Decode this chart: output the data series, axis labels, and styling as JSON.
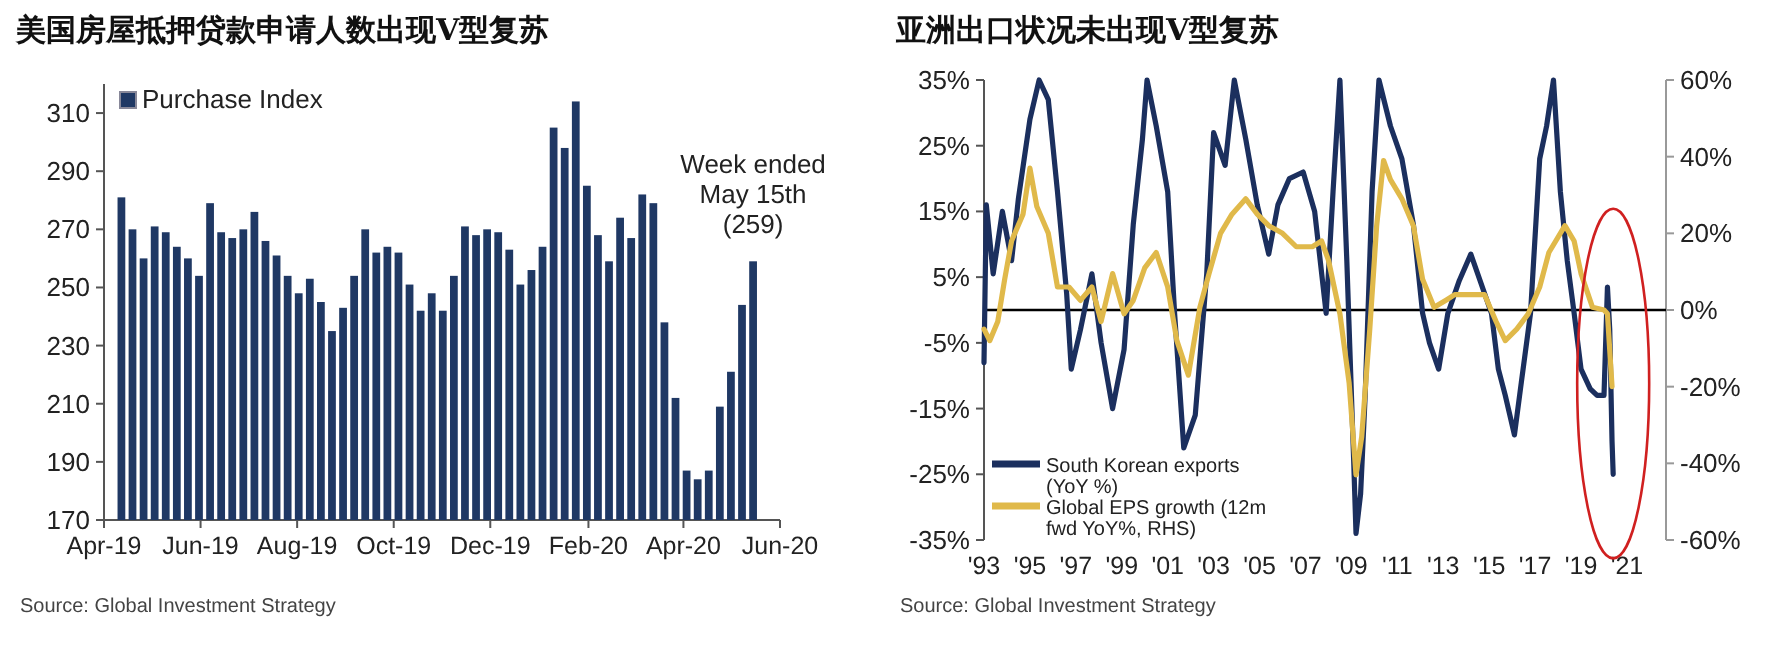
{
  "chart_data": [
    {
      "type": "bar",
      "title": "美国房屋抵押贷款申请人数出现V型复苏",
      "legend": "top left",
      "x": [
        "2019-04-12",
        "2019-04-19",
        "2019-04-26",
        "2019-05-03",
        "2019-05-10",
        "2019-05-17",
        "2019-05-24",
        "2019-05-31",
        "2019-06-07",
        "2019-06-14",
        "2019-06-21",
        "2019-06-28",
        "2019-07-05",
        "2019-07-12",
        "2019-07-19",
        "2019-07-26",
        "2019-08-02",
        "2019-08-09",
        "2019-08-16",
        "2019-08-23",
        "2019-08-30",
        "2019-09-06",
        "2019-09-13",
        "2019-09-20",
        "2019-09-27",
        "2019-10-04",
        "2019-10-11",
        "2019-10-18",
        "2019-10-25",
        "2019-11-01",
        "2019-11-08",
        "2019-11-15",
        "2019-11-22",
        "2019-11-29",
        "2019-12-06",
        "2019-12-13",
        "2019-12-20",
        "2019-12-27",
        "2020-01-03",
        "2020-01-10",
        "2020-01-17",
        "2020-01-24",
        "2020-01-31",
        "2020-02-07",
        "2020-02-14",
        "2020-02-21",
        "2020-02-28",
        "2020-03-06",
        "2020-03-13",
        "2020-03-20",
        "2020-03-27",
        "2020-04-03",
        "2020-04-10",
        "2020-04-17",
        "2020-04-24",
        "2020-05-01",
        "2020-05-08",
        "2020-05-15"
      ],
      "series": [
        {
          "name": "Purchase Index",
          "color": "#1f3864",
          "values": [
            281,
            270,
            260,
            271,
            269,
            264,
            260,
            254,
            279,
            269,
            267,
            270,
            276,
            266,
            261,
            254,
            248,
            253,
            245,
            235,
            243,
            254,
            270,
            262,
            264,
            262,
            251,
            242,
            248,
            242,
            254,
            271,
            268,
            270,
            269,
            263,
            251,
            256,
            264,
            305,
            298,
            314,
            285,
            268,
            259,
            274,
            267,
            282,
            279,
            238,
            212,
            187,
            184,
            187,
            209,
            221,
            244,
            259
          ]
        }
      ],
      "xlim": [
        "2019-04-01",
        "2020-06-01"
      ],
      "xticks": [
        {
          "value": "2019-04-01",
          "label": "Apr-19"
        },
        {
          "value": "2019-06-01",
          "label": "Jun-19"
        },
        {
          "value": "2019-08-01",
          "label": "Aug-19"
        },
        {
          "value": "2019-10-01",
          "label": "Oct-19"
        },
        {
          "value": "2019-12-01",
          "label": "Dec-19"
        },
        {
          "value": "2020-02-01",
          "label": "Feb-20"
        },
        {
          "value": "2020-04-01",
          "label": "Apr-20"
        },
        {
          "value": "2020-06-01",
          "label": "Jun-20"
        }
      ],
      "ylim": [
        170,
        320
      ],
      "yticks": [
        170,
        190,
        210,
        230,
        250,
        270,
        290,
        310
      ],
      "annotations": [
        {
          "text": "Week ended\nMay 15th\n(259)",
          "x": "2020-05-15",
          "y": 259
        },
        "Source: Global Investment Strategy"
      ]
    },
    {
      "type": "line",
      "title": "亚洲出口状况未出现V型复苏",
      "legend": "bottom left",
      "line_style": "solid",
      "series": [
        {
          "name": "South Korean exports (YoY %)",
          "color": "#1b2f5e",
          "x": [
            1993.0,
            1993.1,
            1993.4,
            1993.8,
            1994.2,
            1994.5,
            1995.0,
            1995.4,
            1995.8,
            1996.2,
            1996.6,
            1996.8,
            1997.2,
            1997.7,
            1998.1,
            1998.6,
            1999.1,
            1999.5,
            1999.9,
            2000.1,
            2000.5,
            2001.0,
            2001.3,
            2001.7,
            2002.2,
            2002.7,
            2003.0,
            2003.5,
            2003.9,
            2004.4,
            2004.9,
            2005.4,
            2005.8,
            2006.3,
            2006.9,
            2007.4,
            2007.9,
            2008.2,
            2008.5,
            2008.8,
            2009.1,
            2009.2,
            2009.4,
            2009.6,
            2009.9,
            2010.2,
            2010.7,
            2011.2,
            2011.7,
            2012.1,
            2012.4,
            2012.8,
            2013.2,
            2013.7,
            2014.2,
            2014.6,
            2015.1,
            2015.4,
            2015.7,
            2016.1,
            2016.4,
            2016.8,
            2017.2,
            2017.5,
            2017.8,
            2018.1,
            2018.4,
            2018.7,
            2019.0,
            2019.4,
            2019.7,
            2020.0,
            2020.15,
            2020.25,
            2020.35,
            2020.4
          ],
          "values": [
            -8,
            16,
            5.5,
            15,
            7.5,
            17,
            29,
            35,
            32,
            18,
            2.5,
            -9,
            -3,
            5.5,
            -5,
            -15,
            -6,
            13,
            26,
            35,
            28,
            18,
            -0.5,
            -21,
            -16,
            5.5,
            27,
            22,
            35,
            26,
            16,
            8.5,
            16,
            20,
            21,
            15,
            -0.5,
            18,
            35,
            7.5,
            -23,
            -34,
            -28,
            -13,
            18,
            35,
            28,
            23,
            13,
            -0.5,
            -5,
            -9,
            -0.5,
            4.5,
            8.5,
            4.5,
            -0.5,
            -9,
            -13,
            -19,
            -11,
            -0.5,
            23,
            28,
            35,
            18,
            7.5,
            -0.5,
            -9,
            -12,
            -13,
            -13,
            3.5,
            -3,
            -20,
            -25
          ]
        },
        {
          "name": "Global EPS growth (12m fwd YoY%, RHS)",
          "color": "#e0b94a",
          "axis": "y2",
          "x": [
            1993.0,
            1993.25,
            1993.6,
            1993.9,
            1994.2,
            1994.7,
            1995.0,
            1995.3,
            1995.8,
            1996.2,
            1996.7,
            1997.2,
            1997.7,
            1998.1,
            1998.6,
            1999.1,
            1999.5,
            2000.0,
            2000.5,
            2001.0,
            2001.4,
            2001.9,
            2002.4,
            2002.8,
            2003.3,
            2003.8,
            2004.4,
            2004.9,
            2005.4,
            2006.0,
            2006.6,
            2007.3,
            2007.7,
            2008.0,
            2008.5,
            2008.9,
            2009.2,
            2009.45,
            2009.8,
            2010.1,
            2010.4,
            2010.7,
            2011.2,
            2011.7,
            2012.1,
            2012.6,
            2013.1,
            2013.5,
            2014.2,
            2014.8,
            2015.3,
            2015.7,
            2016.2,
            2016.7,
            2017.2,
            2017.6,
            2018.3,
            2018.7,
            2019.0,
            2019.5,
            2020.0,
            2020.15,
            2020.35
          ],
          "values": [
            -5,
            -8,
            -3,
            8,
            18,
            25,
            37,
            27,
            20,
            6,
            6,
            2.5,
            6,
            -3,
            9.5,
            -1,
            2.5,
            11,
            15,
            6,
            -8,
            -17,
            0.7,
            9.5,
            20,
            25,
            29,
            25,
            22,
            20,
            16.5,
            16.5,
            18,
            13,
            -1,
            -19,
            -43,
            -33,
            -5,
            22,
            39,
            34,
            29,
            22,
            8,
            0.7,
            2.5,
            4,
            4,
            4,
            -3,
            -8,
            -5,
            -1,
            6,
            15,
            22,
            18,
            9.5,
            0.7,
            0,
            -1,
            -20
          ]
        }
      ],
      "xlim": [
        1993,
        2022.7
      ],
      "xticks": [
        {
          "value": 1993,
          "label": "'93"
        },
        {
          "value": 1995,
          "label": "'95"
        },
        {
          "value": 1997,
          "label": "'97"
        },
        {
          "value": 1999,
          "label": "'99"
        },
        {
          "value": 2001,
          "label": "'01"
        },
        {
          "value": 2003,
          "label": "'03"
        },
        {
          "value": 2005,
          "label": "'05"
        },
        {
          "value": 2007,
          "label": "'07"
        },
        {
          "value": 2009,
          "label": "'09"
        },
        {
          "value": 2011,
          "label": "'11"
        },
        {
          "value": 2013,
          "label": "'13"
        },
        {
          "value": 2015,
          "label": "'15"
        },
        {
          "value": 2017,
          "label": "'17"
        },
        {
          "value": 2019,
          "label": "'19"
        },
        {
          "value": 2021,
          "label": "'21"
        }
      ],
      "ylim": [
        -35,
        35
      ],
      "yticks": [
        {
          "value": -35,
          "label": "-35%"
        },
        {
          "value": -25,
          "label": "-25%"
        },
        {
          "value": -15,
          "label": "-15%"
        },
        {
          "value": -5,
          "label": "-5%"
        },
        {
          "value": 5,
          "label": "5%"
        },
        {
          "value": 15,
          "label": "15%"
        },
        {
          "value": 25,
          "label": "25%"
        },
        {
          "value": 35,
          "label": "35%"
        }
      ],
      "y2lim": [
        -60,
        60
      ],
      "y2ticks": [
        {
          "value": -60,
          "label": "-60%"
        },
        {
          "value": -40,
          "label": "-40%"
        },
        {
          "value": -20,
          "label": "-20%"
        },
        {
          "value": 0,
          "label": "0%"
        },
        {
          "value": 20,
          "label": "20%"
        },
        {
          "value": 40,
          "label": "40%"
        },
        {
          "value": 60,
          "label": "60%"
        }
      ],
      "ref_lines": [
        {
          "axis": "y",
          "value": 0,
          "color": "#000000"
        }
      ],
      "annotations": [
        "Source: Global Investment Strategy"
      ]
    }
  ]
}
